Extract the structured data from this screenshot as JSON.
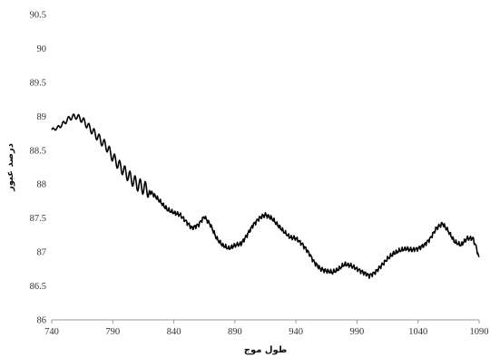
{
  "chart_data": {
    "type": "line",
    "title": "",
    "xlabel": "طول موج",
    "ylabel": "درصد عبور",
    "xlim": [
      740,
      1090
    ],
    "ylim": [
      86,
      90.5
    ],
    "x_ticks": [
      740,
      790,
      840,
      890,
      940,
      990,
      1040,
      1090
    ],
    "y_ticks": [
      86,
      86.5,
      87,
      87.5,
      88,
      88.5,
      89,
      89.5,
      90,
      90.5
    ],
    "x_tick_labels": [
      "740",
      "790",
      "840",
      "890",
      "940",
      "990",
      "1040",
      "1090"
    ],
    "y_tick_labels": [
      "86",
      "86.5",
      "87",
      "87.5",
      "88",
      "88.5",
      "89",
      "89.5",
      "90",
      "90.5"
    ],
    "grid": false,
    "legend": "none",
    "line_color": "#000000",
    "series": [
      {
        "x": [
          740,
          745,
          750,
          755,
          760,
          765,
          770,
          775,
          780,
          785,
          790,
          795,
          800,
          805,
          810,
          815,
          820,
          825,
          830,
          835,
          840,
          845,
          850,
          855,
          860,
          865,
          870,
          875,
          880,
          885,
          890,
          895,
          900,
          905,
          910,
          915,
          920,
          925,
          930,
          935,
          940,
          945,
          950,
          955,
          960,
          965,
          970,
          975,
          980,
          985,
          990,
          995,
          1000,
          1005,
          1010,
          1015,
          1020,
          1025,
          1030,
          1035,
          1040,
          1045,
          1050,
          1055,
          1060,
          1065,
          1070,
          1075,
          1080,
          1085,
          1088,
          1090
        ],
        "y": [
          88.8,
          88.83,
          88.9,
          88.98,
          89.0,
          88.95,
          88.85,
          88.75,
          88.65,
          88.55,
          88.4,
          88.28,
          88.18,
          88.08,
          88.0,
          87.95,
          87.9,
          87.82,
          87.72,
          87.62,
          87.58,
          87.55,
          87.45,
          87.35,
          87.4,
          87.52,
          87.4,
          87.2,
          87.1,
          87.05,
          87.1,
          87.12,
          87.25,
          87.4,
          87.5,
          87.55,
          87.5,
          87.4,
          87.3,
          87.22,
          87.2,
          87.12,
          87.0,
          86.85,
          86.75,
          86.72,
          86.7,
          86.75,
          86.82,
          86.8,
          86.75,
          86.7,
          86.65,
          86.7,
          86.8,
          86.9,
          86.98,
          87.02,
          87.05,
          87.03,
          87.05,
          87.1,
          87.2,
          87.35,
          87.42,
          87.3,
          87.15,
          87.1,
          87.2,
          87.2,
          87.05,
          86.9
        ]
      }
    ]
  }
}
